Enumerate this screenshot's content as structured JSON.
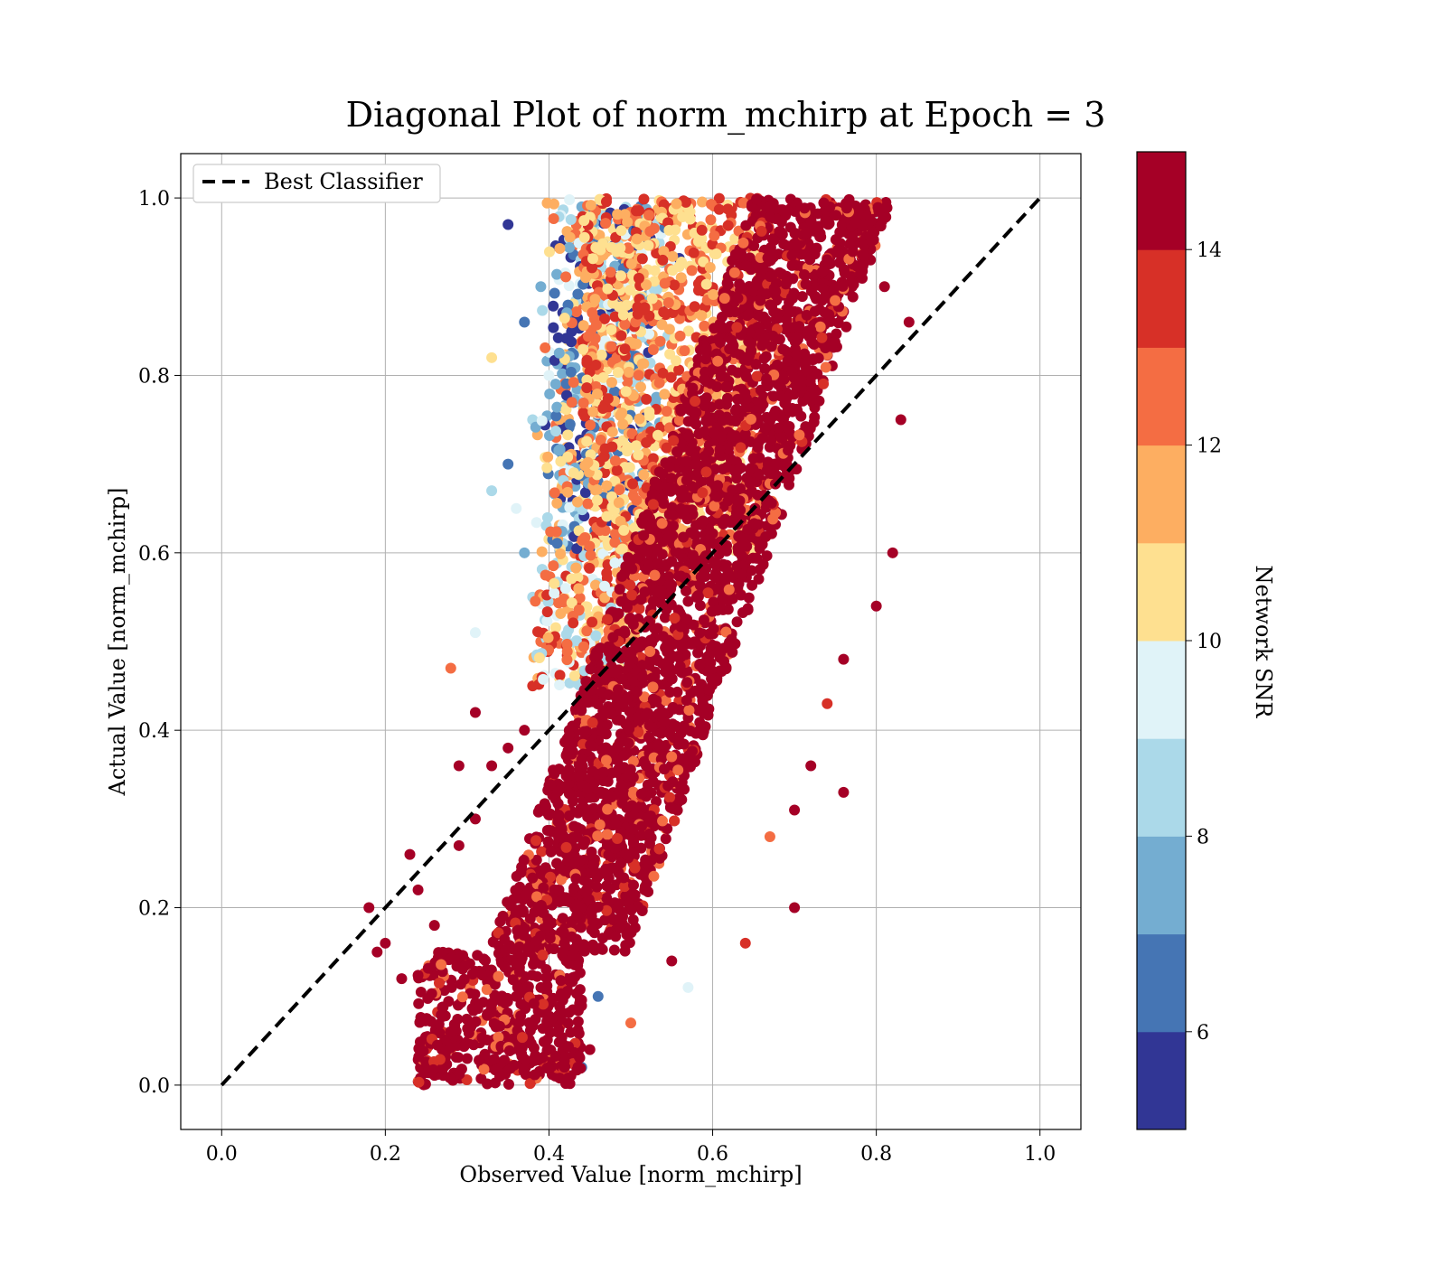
{
  "chart_data": {
    "type": "scatter",
    "title": "Diagonal Plot of norm_mchirp at Epoch = 3",
    "xlabel": "Observed Value [norm_mchirp]",
    "ylabel": "Actual Value [norm_mchirp]",
    "xlim": [
      -0.05,
      1.05
    ],
    "ylim": [
      -0.05,
      1.05
    ],
    "xticks": [
      0.0,
      0.2,
      0.4,
      0.6,
      0.8,
      1.0
    ],
    "yticks": [
      0.0,
      0.2,
      0.4,
      0.6,
      0.8,
      1.0
    ],
    "xtick_labels": [
      "0.0",
      "0.2",
      "0.4",
      "0.6",
      "0.8",
      "1.0"
    ],
    "ytick_labels": [
      "0.0",
      "0.2",
      "0.4",
      "0.6",
      "0.8",
      "1.0"
    ],
    "grid": true,
    "legend": {
      "placement": "top-left",
      "entries": [
        {
          "label": "Best Classifier",
          "style": "dashed",
          "color": "#000000"
        }
      ]
    },
    "reference_line": {
      "name": "Best Classifier",
      "x": [
        0.0,
        1.0
      ],
      "y": [
        0.0,
        1.0
      ],
      "style": "dashed",
      "color": "#000000"
    },
    "colorbar": {
      "label": "Network SNR",
      "range": [
        5,
        15
      ],
      "ticks": [
        6,
        8,
        10,
        12,
        14
      ],
      "tick_labels": [
        "6",
        "8",
        "10",
        "12",
        "14"
      ],
      "colors": [
        "#313695",
        "#4575b4",
        "#74add1",
        "#abd9e9",
        "#e0f3f8",
        "#fee090",
        "#fdae61",
        "#f46d43",
        "#d73027",
        "#a50026"
      ],
      "colormap": "RdYlBu_r (discrete)"
    },
    "series": [
      {
        "description_points": "approximate representative sample of scattered points, colored by Network SNR",
        "points": [
          {
            "x": 0.42,
            "y": 0.01,
            "c": 15
          },
          {
            "x": 0.43,
            "y": 0.03,
            "c": 15
          },
          {
            "x": 0.41,
            "y": 0.06,
            "c": 15
          },
          {
            "x": 0.44,
            "y": 0.02,
            "c": 6
          },
          {
            "x": 0.36,
            "y": 0.1,
            "c": 15
          },
          {
            "x": 0.33,
            "y": 0.05,
            "c": 15
          },
          {
            "x": 0.3,
            "y": 0.03,
            "c": 14
          },
          {
            "x": 0.27,
            "y": 0.06,
            "c": 13
          },
          {
            "x": 0.22,
            "y": 0.12,
            "c": 15
          },
          {
            "x": 0.19,
            "y": 0.15,
            "c": 15
          },
          {
            "x": 0.18,
            "y": 0.2,
            "c": 15
          },
          {
            "x": 0.2,
            "y": 0.16,
            "c": 14
          },
          {
            "x": 0.24,
            "y": 0.22,
            "c": 15
          },
          {
            "x": 0.26,
            "y": 0.18,
            "c": 15
          },
          {
            "x": 0.29,
            "y": 0.27,
            "c": 15
          },
          {
            "x": 0.31,
            "y": 0.3,
            "c": 15
          },
          {
            "x": 0.33,
            "y": 0.36,
            "c": 15
          },
          {
            "x": 0.35,
            "y": 0.38,
            "c": 14
          },
          {
            "x": 0.37,
            "y": 0.4,
            "c": 15
          },
          {
            "x": 0.38,
            "y": 0.45,
            "c": 13
          },
          {
            "x": 0.39,
            "y": 0.5,
            "c": 12
          },
          {
            "x": 0.38,
            "y": 0.55,
            "c": 8
          },
          {
            "x": 0.37,
            "y": 0.6,
            "c": 7
          },
          {
            "x": 0.36,
            "y": 0.65,
            "c": 9
          },
          {
            "x": 0.35,
            "y": 0.7,
            "c": 6
          },
          {
            "x": 0.38,
            "y": 0.75,
            "c": 8
          },
          {
            "x": 0.4,
            "y": 0.8,
            "c": 9
          },
          {
            "x": 0.37,
            "y": 0.86,
            "c": 6
          },
          {
            "x": 0.39,
            "y": 0.9,
            "c": 7
          },
          {
            "x": 0.42,
            "y": 0.95,
            "c": 8
          },
          {
            "x": 0.44,
            "y": 0.99,
            "c": 7
          },
          {
            "x": 0.35,
            "y": 0.97,
            "c": 5
          },
          {
            "x": 0.46,
            "y": 0.92,
            "c": 10
          },
          {
            "x": 0.5,
            "y": 0.97,
            "c": 11
          },
          {
            "x": 0.54,
            "y": 0.9,
            "c": 10
          },
          {
            "x": 0.48,
            "y": 0.85,
            "c": 11
          },
          {
            "x": 0.52,
            "y": 0.8,
            "c": 12
          },
          {
            "x": 0.46,
            "y": 0.75,
            "c": 11
          },
          {
            "x": 0.44,
            "y": 0.7,
            "c": 10
          },
          {
            "x": 0.47,
            "y": 0.65,
            "c": 12
          },
          {
            "x": 0.58,
            "y": 0.95,
            "c": 12
          },
          {
            "x": 0.62,
            "y": 0.9,
            "c": 13
          },
          {
            "x": 0.66,
            "y": 0.97,
            "c": 14
          },
          {
            "x": 0.7,
            "y": 0.93,
            "c": 15
          },
          {
            "x": 0.74,
            "y": 0.98,
            "c": 15
          },
          {
            "x": 0.78,
            "y": 0.95,
            "c": 15
          },
          {
            "x": 0.81,
            "y": 0.9,
            "c": 15
          },
          {
            "x": 0.84,
            "y": 0.86,
            "c": 15
          },
          {
            "x": 0.83,
            "y": 0.75,
            "c": 15
          },
          {
            "x": 0.82,
            "y": 0.6,
            "c": 15
          },
          {
            "x": 0.8,
            "y": 0.54,
            "c": 15
          },
          {
            "x": 0.76,
            "y": 0.48,
            "c": 15
          },
          {
            "x": 0.74,
            "y": 0.43,
            "c": 13
          },
          {
            "x": 0.72,
            "y": 0.36,
            "c": 14
          },
          {
            "x": 0.7,
            "y": 0.31,
            "c": 15
          },
          {
            "x": 0.67,
            "y": 0.28,
            "c": 12
          },
          {
            "x": 0.64,
            "y": 0.16,
            "c": 13
          },
          {
            "x": 0.7,
            "y": 0.2,
            "c": 15
          },
          {
            "x": 0.76,
            "y": 0.33,
            "c": 14
          },
          {
            "x": 0.57,
            "y": 0.11,
            "c": 9
          },
          {
            "x": 0.55,
            "y": 0.14,
            "c": 15
          },
          {
            "x": 0.5,
            "y": 0.07,
            "c": 12
          },
          {
            "x": 0.46,
            "y": 0.1,
            "c": 6
          },
          {
            "x": 0.45,
            "y": 0.04,
            "c": 15
          },
          {
            "x": 0.28,
            "y": 0.47,
            "c": 12
          },
          {
            "x": 0.31,
            "y": 0.51,
            "c": 9
          },
          {
            "x": 0.33,
            "y": 0.67,
            "c": 8
          },
          {
            "x": 0.33,
            "y": 0.82,
            "c": 10
          },
          {
            "x": 0.31,
            "y": 0.42,
            "c": 15
          },
          {
            "x": 0.29,
            "y": 0.36,
            "c": 15
          },
          {
            "x": 0.23,
            "y": 0.26,
            "c": 14
          },
          {
            "x": 0.28,
            "y": 0.04,
            "c": 12
          }
        ]
      }
    ]
  }
}
